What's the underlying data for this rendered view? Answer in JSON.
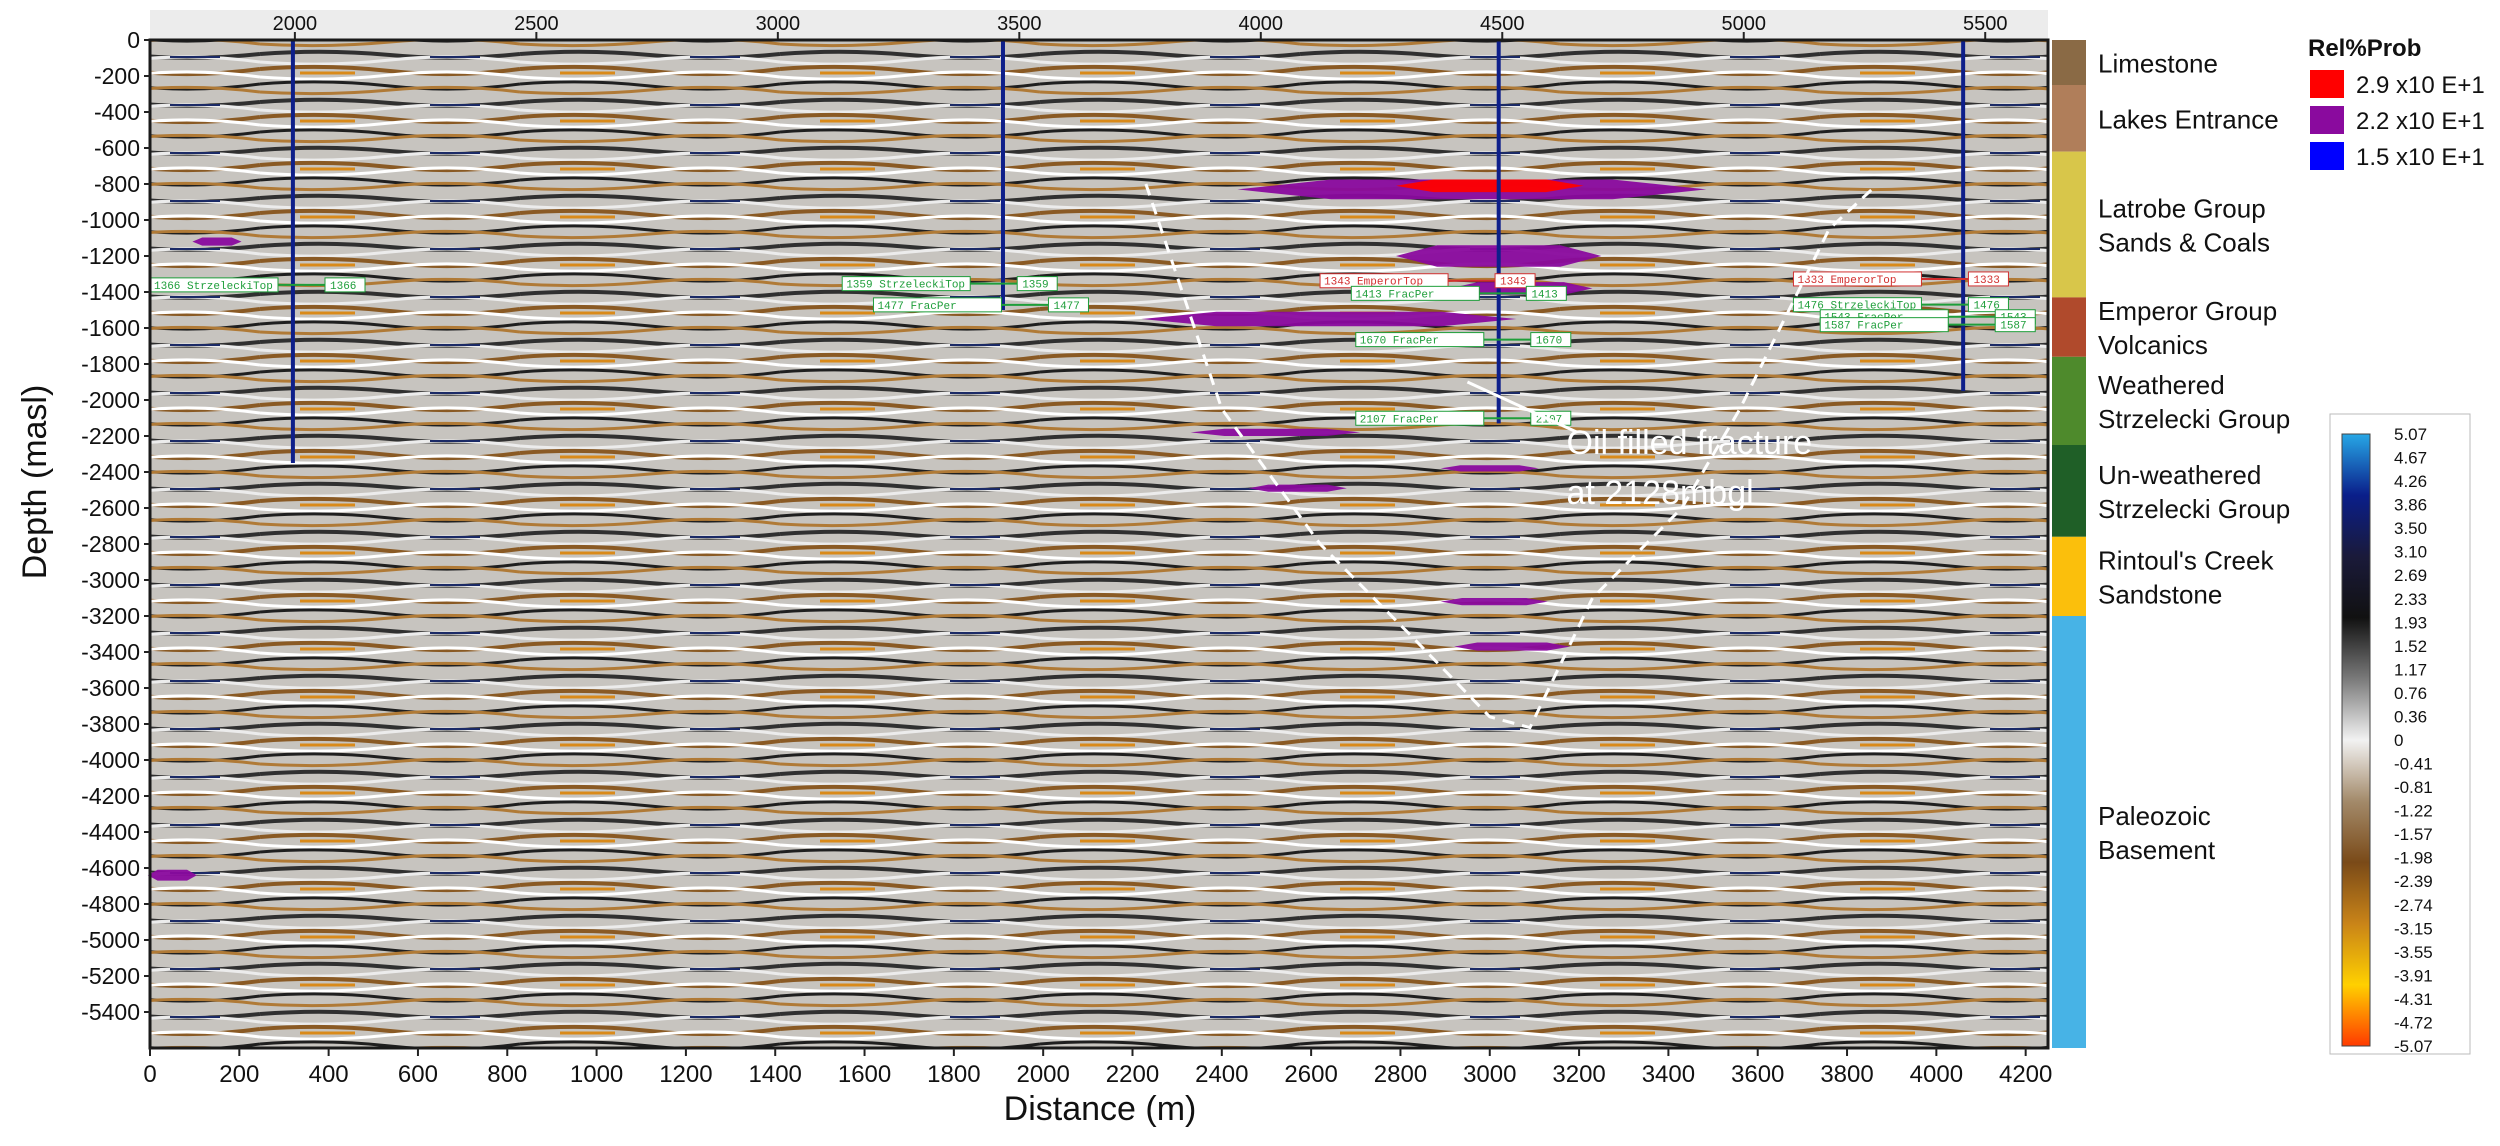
{
  "chart_data": {
    "type": "heatmap",
    "title": "",
    "xlabel": "Distance (m)",
    "ylabel": "Depth (masl)",
    "xlim": [
      0,
      4250
    ],
    "ylim": [
      -5600,
      0
    ],
    "x_ticks": [
      "0",
      "200",
      "400",
      "600",
      "800",
      "1000",
      "1200",
      "1400",
      "1600",
      "1800",
      "2000",
      "2200",
      "2400",
      "2600",
      "2800",
      "3000",
      "3200",
      "3400",
      "3600",
      "3800",
      "4000",
      "4200"
    ],
    "y_ticks": [
      "0",
      "-200",
      "-400",
      "-600",
      "-800",
      "-1000",
      "-1200",
      "-1400",
      "-1600",
      "-1800",
      "-2000",
      "-2200",
      "-2400",
      "-2600",
      "-2800",
      "-3000",
      "-3200",
      "-3400",
      "-3600",
      "-3800",
      "-4000",
      "-4200",
      "-4400",
      "-4600",
      "-4800",
      "-5000",
      "-5200",
      "-5400"
    ],
    "top_axis": {
      "range": [
        1700,
        5630
      ],
      "ticks": [
        "2000",
        "2500",
        "3000",
        "3500",
        "4000",
        "4500",
        "5000",
        "5500"
      ]
    },
    "wells": [
      {
        "x": 320,
        "top": 0,
        "bottom": -2350
      },
      {
        "x": 1910,
        "top": 0,
        "bottom": -1500
      },
      {
        "x": 3020,
        "top": 0,
        "bottom": -2130
      },
      {
        "x": 4060,
        "top": 0,
        "bottom": -1950
      }
    ],
    "well_picks": [
      {
        "x": 0,
        "depth": -1366,
        "label": "1366 StrzeleckiTop",
        "value": "1366",
        "color": "#1e9e3a"
      },
      {
        "x": 1550,
        "depth": -1359,
        "label": "1359 StrzeleckiTop",
        "value": "1359",
        "color": "#1e9e3a"
      },
      {
        "x": 1620,
        "depth": -1477,
        "label": "1477 FracPer",
        "value": "1477",
        "color": "#1e9e3a"
      },
      {
        "x": 2620,
        "depth": -1343,
        "label": "1343 EmperorTop",
        "value": "1343",
        "color": "#d23030"
      },
      {
        "x": 2690,
        "depth": -1413,
        "label": "1413 FracPer",
        "value": "1413",
        "color": "#1e9e3a"
      },
      {
        "x": 2700,
        "depth": -1670,
        "label": "1670 FracPer",
        "value": "1670",
        "color": "#1e9e3a"
      },
      {
        "x": 2700,
        "depth": -2107,
        "label": "2107 FracPer",
        "value": "2107",
        "color": "#1e9e3a"
      },
      {
        "x": 3680,
        "depth": -1333,
        "label": "1333 EmperorTop",
        "value": "1333",
        "color": "#d23030"
      },
      {
        "x": 3680,
        "depth": -1476,
        "label": "1476 StrzeleckiTop",
        "value": "1476",
        "color": "#1e9e3a"
      },
      {
        "x": 3740,
        "depth": -1543,
        "label": "1543 FracPer",
        "value": "1543",
        "color": "#1e9e3a"
      },
      {
        "x": 3740,
        "depth": -1587,
        "label": "1587 FracPer",
        "value": "1587",
        "color": "#1e9e3a"
      }
    ],
    "probability_anomalies": [
      {
        "x_center": 2960,
        "depth": -830,
        "width": 1050,
        "thickness": 110,
        "level": "mid"
      },
      {
        "x_center": 3000,
        "depth": -810,
        "width": 420,
        "thickness": 70,
        "level": "high"
      },
      {
        "x_center": 3020,
        "depth": -1200,
        "width": 460,
        "thickness": 120,
        "level": "mid"
      },
      {
        "x_center": 3070,
        "depth": -1380,
        "width": 320,
        "thickness": 70,
        "level": "mid"
      },
      {
        "x_center": 2640,
        "depth": -1550,
        "width": 840,
        "thickness": 80,
        "level": "mid"
      },
      {
        "x_center": 150,
        "depth": -1120,
        "width": 110,
        "thickness": 45,
        "level": "mid"
      },
      {
        "x_center": 2520,
        "depth": -2180,
        "width": 380,
        "thickness": 40,
        "level": "mid"
      },
      {
        "x_center": 2570,
        "depth": -2490,
        "width": 220,
        "thickness": 40,
        "level": "mid"
      },
      {
        "x_center": 3000,
        "depth": -2380,
        "width": 220,
        "thickness": 35,
        "level": "mid"
      },
      {
        "x_center": 3010,
        "depth": -3120,
        "width": 240,
        "thickness": 40,
        "level": "mid"
      },
      {
        "x_center": 3050,
        "depth": -3370,
        "width": 260,
        "thickness": 45,
        "level": "mid"
      },
      {
        "x_center": 50,
        "depth": -4640,
        "width": 110,
        "thickness": 60,
        "level": "mid"
      }
    ],
    "fracture_outline": {
      "points": [
        [
          2230,
          -800
        ],
        [
          2400,
          -2050
        ],
        [
          2620,
          -2800
        ],
        [
          2820,
          -3300
        ],
        [
          3000,
          -3760
        ],
        [
          3090,
          -3820
        ],
        [
          3230,
          -3100
        ],
        [
          3430,
          -2600
        ],
        [
          3560,
          -2050
        ],
        [
          3670,
          -1500
        ],
        [
          3760,
          -1050
        ],
        [
          3860,
          -820
        ]
      ]
    },
    "annotation": {
      "lines": [
        "Oil filled fracture",
        "at 2128mbgl"
      ],
      "arrow_to": [
        2950,
        -1900
      ]
    },
    "stratigraphy": [
      {
        "name": [
          "Limestone"
        ],
        "top": 0,
        "base": -250,
        "color": "#8a6a45"
      },
      {
        "name": [
          "Lakes Entrance"
        ],
        "top": -250,
        "base": -620,
        "color": "#b07e5a"
      },
      {
        "name": [
          "Latrobe Group",
          "Sands & Coals"
        ],
        "top": -620,
        "base": -1430,
        "color": "#d8c64a"
      },
      {
        "name": [
          "Emperor Group",
          "Volcanics"
        ],
        "top": -1430,
        "base": -1760,
        "color": "#b04a2c"
      },
      {
        "name": [
          "Weathered",
          "Strzelecki Group"
        ],
        "top": -1760,
        "base": -2250,
        "color": "#4e8a2c"
      },
      {
        "name": [
          "Un-weathered",
          "Strzelecki Group"
        ],
        "top": -2250,
        "base": -2760,
        "color": "#1f5f27"
      },
      {
        "name": [
          "Rintoul's Creek",
          "Sandstone"
        ],
        "top": -2760,
        "base": -3200,
        "color": "#fbbf0c"
      },
      {
        "name": [
          "Paleozoic",
          "Basement"
        ],
        "top": -3200,
        "base": -5600,
        "color": "#47b3e6"
      }
    ],
    "legend": {
      "title": "Rel%Prob",
      "position": "top-right",
      "entries": [
        {
          "label": "2.9 x10 E+1",
          "color": "#ff0000"
        },
        {
          "label": "2.2 x10 E+1",
          "color": "#8a0a9e"
        },
        {
          "label": "1.5 x10 E+1",
          "color": "#0000ff"
        }
      ]
    },
    "colorbar": {
      "ticks": [
        "5.07",
        "4.67",
        "4.26",
        "3.86",
        "3.50",
        "3.10",
        "2.69",
        "2.33",
        "1.93",
        "1.52",
        "1.17",
        "0.76",
        "0.36",
        "0",
        "-0.41",
        "-0.81",
        "-1.22",
        "-1.57",
        "-1.98",
        "-2.39",
        "-2.74",
        "-3.15",
        "-3.55",
        "-3.91",
        "-4.31",
        "-4.72",
        "-5.07"
      ],
      "colors": [
        "#27a7e6",
        "#0a1e8a",
        "#1a1a3a",
        "#111111",
        "#7a7a7a",
        "#f2f2f2",
        "#a38a6a",
        "#7a4a18",
        "#c98418",
        "#ffd000",
        "#ff3a00"
      ]
    }
  }
}
